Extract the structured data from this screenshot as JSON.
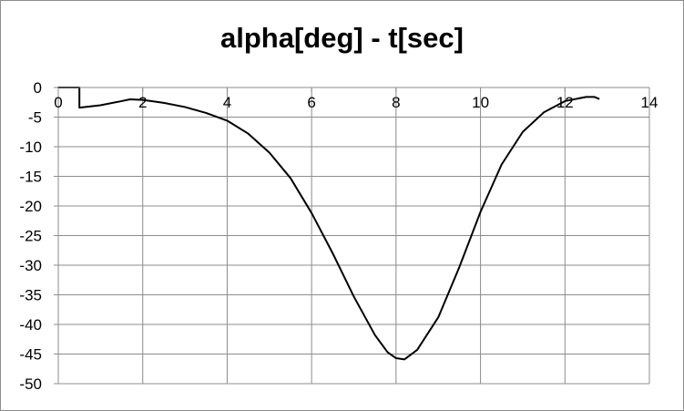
{
  "chart_data": {
    "type": "line",
    "title": "alpha[deg] - t[sec]",
    "xlabel": "",
    "ylabel": "",
    "xlim": [
      0,
      14
    ],
    "ylim": [
      -50,
      0
    ],
    "x_ticks": [
      0,
      2,
      4,
      6,
      8,
      10,
      12,
      14
    ],
    "y_ticks": [
      0,
      -5,
      -10,
      -15,
      -20,
      -25,
      -30,
      -35,
      -40,
      -45,
      -50
    ],
    "grid": true,
    "legend": "none",
    "line_color": "#000000",
    "series": [
      {
        "x": [
          0,
          0.5,
          0.5,
          1.0,
          1.5,
          1.7,
          2.0,
          2.5,
          3.0,
          3.5,
          4.0,
          4.5,
          5.0,
          5.5,
          6.0,
          6.5,
          7.0,
          7.5,
          7.8,
          8.0,
          8.2,
          8.5,
          9.0,
          9.5,
          10.0,
          10.5,
          11.0,
          11.5,
          12.0,
          12.5,
          12.7,
          12.8
        ],
        "y": [
          0,
          0,
          -3.4,
          -3.0,
          -2.3,
          -2.0,
          -2.1,
          -2.6,
          -3.3,
          -4.3,
          -5.6,
          -7.8,
          -11.0,
          -15.3,
          -21.2,
          -28.0,
          -35.3,
          -41.8,
          -44.7,
          -45.7,
          -45.9,
          -44.3,
          -38.8,
          -30.3,
          -21.0,
          -13.0,
          -7.5,
          -4.2,
          -2.3,
          -1.6,
          -1.6,
          -1.9
        ]
      }
    ]
  }
}
